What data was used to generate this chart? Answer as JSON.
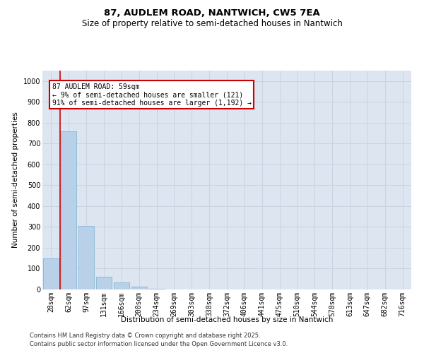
{
  "title_line1": "87, AUDLEM ROAD, NANTWICH, CW5 7EA",
  "title_line2": "Size of property relative to semi-detached houses in Nantwich",
  "xlabel": "Distribution of semi-detached houses by size in Nantwich",
  "ylabel": "Number of semi-detached properties",
  "categories": [
    "28sqm",
    "62sqm",
    "97sqm",
    "131sqm",
    "166sqm",
    "200sqm",
    "234sqm",
    "269sqm",
    "303sqm",
    "338sqm",
    "372sqm",
    "406sqm",
    "441sqm",
    "475sqm",
    "510sqm",
    "544sqm",
    "578sqm",
    "613sqm",
    "647sqm",
    "682sqm",
    "716sqm"
  ],
  "values": [
    150,
    760,
    305,
    60,
    35,
    13,
    5,
    0,
    0,
    0,
    0,
    0,
    0,
    0,
    0,
    0,
    0,
    0,
    0,
    0,
    0
  ],
  "bar_color": "#b8d0e8",
  "bar_edge_color": "#7aafd4",
  "annotation_box_text": "87 AUDLEM ROAD: 59sqm\n← 9% of semi-detached houses are smaller (121)\n91% of semi-detached houses are larger (1,192) →",
  "annotation_box_color": "#cc0000",
  "vline_x_pos": 0.5,
  "ylim": [
    0,
    1050
  ],
  "yticks": [
    0,
    100,
    200,
    300,
    400,
    500,
    600,
    700,
    800,
    900,
    1000
  ],
  "grid_color": "#c8d4e4",
  "background_color": "#dde5f0",
  "footer_line1": "Contains HM Land Registry data © Crown copyright and database right 2025.",
  "footer_line2": "Contains public sector information licensed under the Open Government Licence v3.0.",
  "title_fontsize": 9.5,
  "subtitle_fontsize": 8.5,
  "axis_label_fontsize": 7.5,
  "tick_fontsize": 7,
  "annotation_fontsize": 7,
  "footer_fontsize": 6
}
